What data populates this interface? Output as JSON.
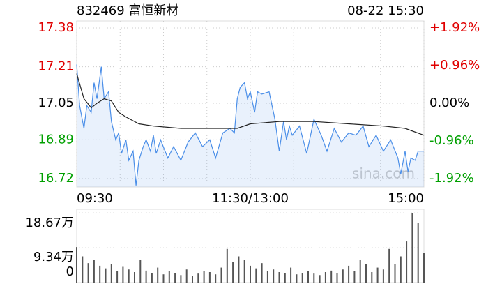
{
  "chart_data": [
    {
      "type": "line",
      "title": "832469 富恒新材",
      "subtitle": "08-22 15:30",
      "watermark": "sina.com",
      "prev_close": 17.05,
      "xlim": [
        0,
        240
      ],
      "xticks": [
        {
          "value": 0,
          "label": "09:30"
        },
        {
          "value": 120,
          "label": "11:30/13:00"
        },
        {
          "value": 240,
          "label": "15:00"
        }
      ],
      "xgrid": [
        0,
        30,
        60,
        90,
        120,
        150,
        180,
        210,
        240
      ],
      "ylim": [
        16.72,
        17.38
      ],
      "yticks": [
        17.38,
        17.21,
        17.05,
        16.89,
        16.72
      ],
      "y2lim": [
        -1.92,
        1.92
      ],
      "y2ticks": [
        {
          "value": 1.92,
          "label": "+1.92%"
        },
        {
          "value": 0.96,
          "label": "+0.96%"
        },
        {
          "value": 0,
          "label": "0.00%"
        },
        {
          "value": -0.96,
          "label": "-0.96%"
        },
        {
          "value": -1.92,
          "label": "-1.92%"
        }
      ],
      "up_color": "#e00000",
      "down_color": "#00a000",
      "flat_color": "#000000",
      "series": [
        {
          "name": "price",
          "color": "#4a8ee8",
          "fill": true,
          "x": [
            0,
            2,
            5,
            7,
            10,
            12,
            14,
            17,
            19,
            22,
            24,
            27,
            29,
            31,
            34,
            36,
            39,
            41,
            43,
            46,
            48,
            51,
            53,
            55,
            58,
            63,
            67,
            72,
            77,
            82,
            87,
            92,
            96,
            101,
            106,
            109,
            111,
            113,
            116,
            118,
            120,
            123,
            125,
            128,
            133,
            137,
            140,
            143,
            145,
            147,
            149,
            154,
            159,
            164,
            169,
            173,
            178,
            183,
            188,
            193,
            198,
            202,
            207,
            212,
            217,
            222,
            224,
            227,
            229,
            231,
            234,
            236,
            240
          ],
          "values": [
            17.22,
            17.04,
            16.94,
            17.04,
            17.01,
            17.14,
            17.07,
            17.21,
            17.07,
            17.1,
            16.97,
            16.89,
            16.92,
            16.83,
            16.89,
            16.8,
            16.84,
            16.69,
            16.8,
            16.86,
            16.89,
            16.84,
            16.91,
            16.83,
            16.89,
            16.81,
            16.86,
            16.8,
            16.88,
            16.92,
            16.86,
            16.89,
            16.81,
            16.92,
            16.94,
            16.92,
            17.07,
            17.12,
            17.14,
            17.07,
            17.1,
            17.01,
            17.1,
            17.09,
            17.1,
            16.98,
            16.84,
            16.97,
            16.89,
            16.95,
            16.91,
            16.95,
            16.83,
            16.98,
            16.91,
            16.84,
            16.94,
            16.88,
            16.92,
            16.91,
            16.95,
            16.86,
            16.91,
            16.84,
            16.89,
            16.81,
            16.74,
            16.84,
            16.75,
            16.81,
            16.8,
            16.84,
            16.84
          ]
        },
        {
          "name": "average",
          "color": "#222222",
          "fill": false,
          "x": [
            0,
            5,
            10,
            14,
            19,
            24,
            29,
            34,
            43,
            53,
            72,
            92,
            111,
            120,
            140,
            164,
            188,
            212,
            227,
            240
          ],
          "values": [
            17.18,
            17.07,
            17.03,
            17.05,
            17.07,
            17.06,
            17.01,
            16.99,
            16.96,
            16.95,
            16.94,
            16.94,
            16.94,
            16.96,
            16.97,
            16.97,
            16.96,
            16.95,
            16.94,
            16.91
          ]
        }
      ]
    },
    {
      "type": "bar",
      "color": "#555555",
      "xlim": [
        0,
        240
      ],
      "ylim": [
        0,
        186700
      ],
      "yticks": [
        {
          "value": 186700,
          "label": "18.67万"
        },
        {
          "value": 93400,
          "label": "9.34万"
        },
        0
      ],
      "x": [
        0,
        4,
        8,
        12,
        16,
        20,
        24,
        28,
        32,
        36,
        40,
        44,
        48,
        52,
        56,
        60,
        64,
        68,
        72,
        76,
        80,
        84,
        88,
        92,
        96,
        100,
        104,
        108,
        112,
        116,
        120,
        124,
        128,
        132,
        136,
        140,
        144,
        148,
        152,
        156,
        160,
        164,
        168,
        172,
        176,
        180,
        184,
        188,
        192,
        196,
        200,
        204,
        208,
        212,
        216,
        220,
        224,
        228,
        232,
        236,
        240
      ],
      "values": [
        95000,
        70000,
        52000,
        60000,
        45000,
        38000,
        50000,
        30000,
        42000,
        35000,
        28000,
        60000,
        32000,
        25000,
        40000,
        22000,
        30000,
        26000,
        20000,
        35000,
        18000,
        24000,
        30000,
        28000,
        22000,
        40000,
        90000,
        55000,
        70000,
        60000,
        45000,
        38000,
        52000,
        30000,
        35000,
        28000,
        25000,
        40000,
        22000,
        26000,
        30000,
        24000,
        20000,
        28000,
        32000,
        26000,
        35000,
        45000,
        30000,
        60000,
        50000,
        28000,
        40000,
        35000,
        90000,
        50000,
        70000,
        110000,
        186000,
        160000,
        80000
      ]
    }
  ]
}
